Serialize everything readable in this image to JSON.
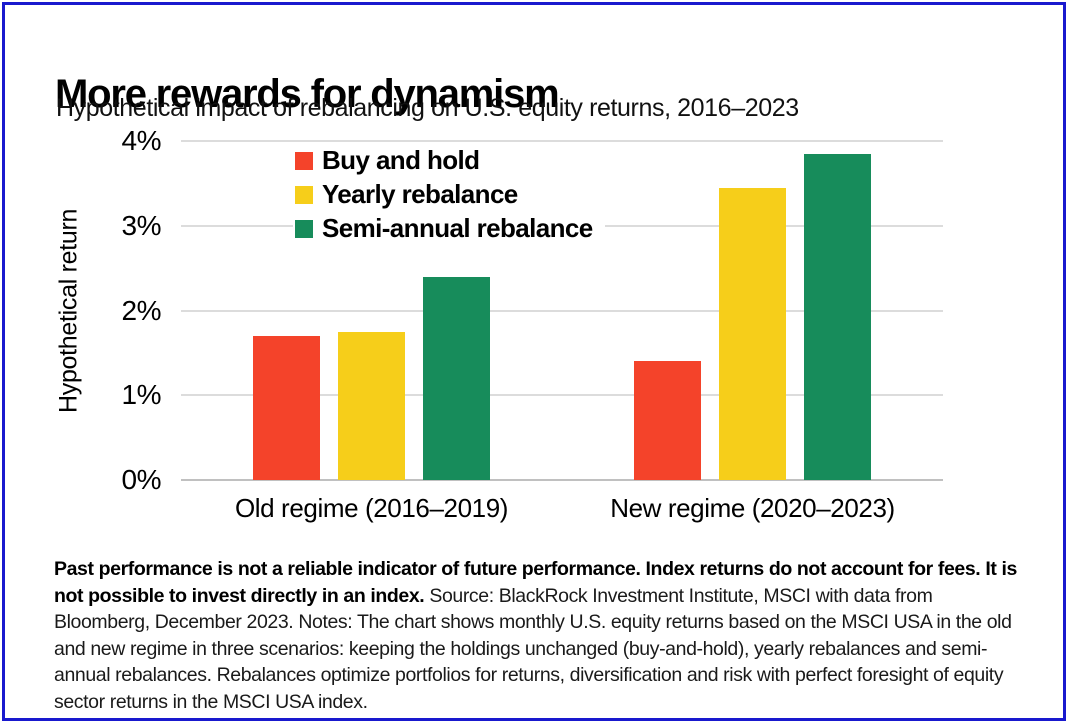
{
  "header": {
    "title": "More rewards for dynamism",
    "subtitle": "Hypothetical impact of rebalancing on U.S. equity returns, 2016–2023"
  },
  "chart_data": {
    "type": "bar",
    "title": "More rewards for dynamism",
    "subtitle": "Hypothetical impact of rebalancing on U.S. equity returns, 2016–2023",
    "xlabel": "",
    "ylabel": "Hypothetical return",
    "categories": [
      "Old regime (2016–2019)",
      "New regime (2020–2023)"
    ],
    "series": [
      {
        "name": "Buy and hold",
        "color": "#F4432A",
        "values": [
          1.7,
          1.4
        ]
      },
      {
        "name": "Yearly rebalance",
        "color": "#F6CE1A",
        "values": [
          1.75,
          3.45
        ]
      },
      {
        "name": "Semi-annual rebalance",
        "color": "#178C5B",
        "values": [
          2.4,
          3.85
        ]
      }
    ],
    "ylim": [
      0,
      4
    ],
    "y_tick_values": [
      4,
      3,
      2,
      1,
      0
    ],
    "y_ticks": [
      "4%",
      "3%",
      "2%",
      "1%",
      "0%"
    ],
    "grid": true,
    "legend_position": "top-left-inside"
  },
  "footnote": {
    "bold_text": "Past performance is not a reliable indicator of future performance. Index returns do not account for fees. It is not possible to invest directly in an index.",
    "regular_text": "Source: BlackRock Investment Institute, MSCI with data from Bloomberg, December 2023. Notes: The chart shows monthly U.S. equity returns based on the MSCI USA in the old and new regime in three scenarios: keeping the holdings unchanged (buy-and-hold), yearly rebalances and semi-annual rebalances. Rebalances optimize portfolios for returns, diversification and risk with perfect foresight of equity sector returns in the MSCI USA index."
  },
  "colors": {
    "border": "#1919CE",
    "gridline": "#DCDCDC",
    "axis_line": "#C0C0C0"
  }
}
